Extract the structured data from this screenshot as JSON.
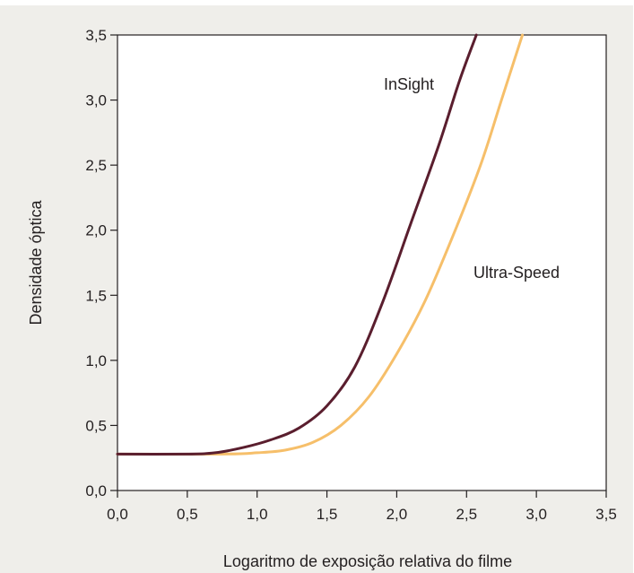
{
  "chart_data": {
    "type": "line",
    "title": "",
    "xlabel": "Logaritmo de exposição relativa do filme",
    "ylabel": "Densidade óptica",
    "xlim": [
      0,
      3.5
    ],
    "ylim": [
      0,
      3.5
    ],
    "x_ticks": [
      "0,0",
      "0,5",
      "1,0",
      "1,5",
      "2,0",
      "2,5",
      "3,0",
      "3,5"
    ],
    "y_ticks": [
      "0,0",
      "0,5",
      "1,0",
      "1,5",
      "2,0",
      "2,5",
      "3,0",
      "3,5"
    ],
    "grid": false,
    "legend": "inline labels",
    "series": [
      {
        "name": "InSight",
        "color": "#5a1e2e",
        "points": [
          [
            0.0,
            0.28
          ],
          [
            0.5,
            0.28
          ],
          [
            0.7,
            0.29
          ],
          [
            0.9,
            0.33
          ],
          [
            1.1,
            0.39
          ],
          [
            1.3,
            0.48
          ],
          [
            1.5,
            0.65
          ],
          [
            1.7,
            0.95
          ],
          [
            1.9,
            1.45
          ],
          [
            2.1,
            2.05
          ],
          [
            2.3,
            2.65
          ],
          [
            2.45,
            3.15
          ],
          [
            2.57,
            3.5
          ]
        ]
      },
      {
        "name": "Ultra-Speed",
        "color": "#f6bf6a",
        "points": [
          [
            0.0,
            0.28
          ],
          [
            0.75,
            0.28
          ],
          [
            1.0,
            0.29
          ],
          [
            1.2,
            0.31
          ],
          [
            1.4,
            0.37
          ],
          [
            1.6,
            0.5
          ],
          [
            1.8,
            0.72
          ],
          [
            2.0,
            1.05
          ],
          [
            2.2,
            1.45
          ],
          [
            2.4,
            1.95
          ],
          [
            2.6,
            2.5
          ],
          [
            2.75,
            3.0
          ],
          [
            2.9,
            3.5
          ]
        ]
      }
    ]
  }
}
